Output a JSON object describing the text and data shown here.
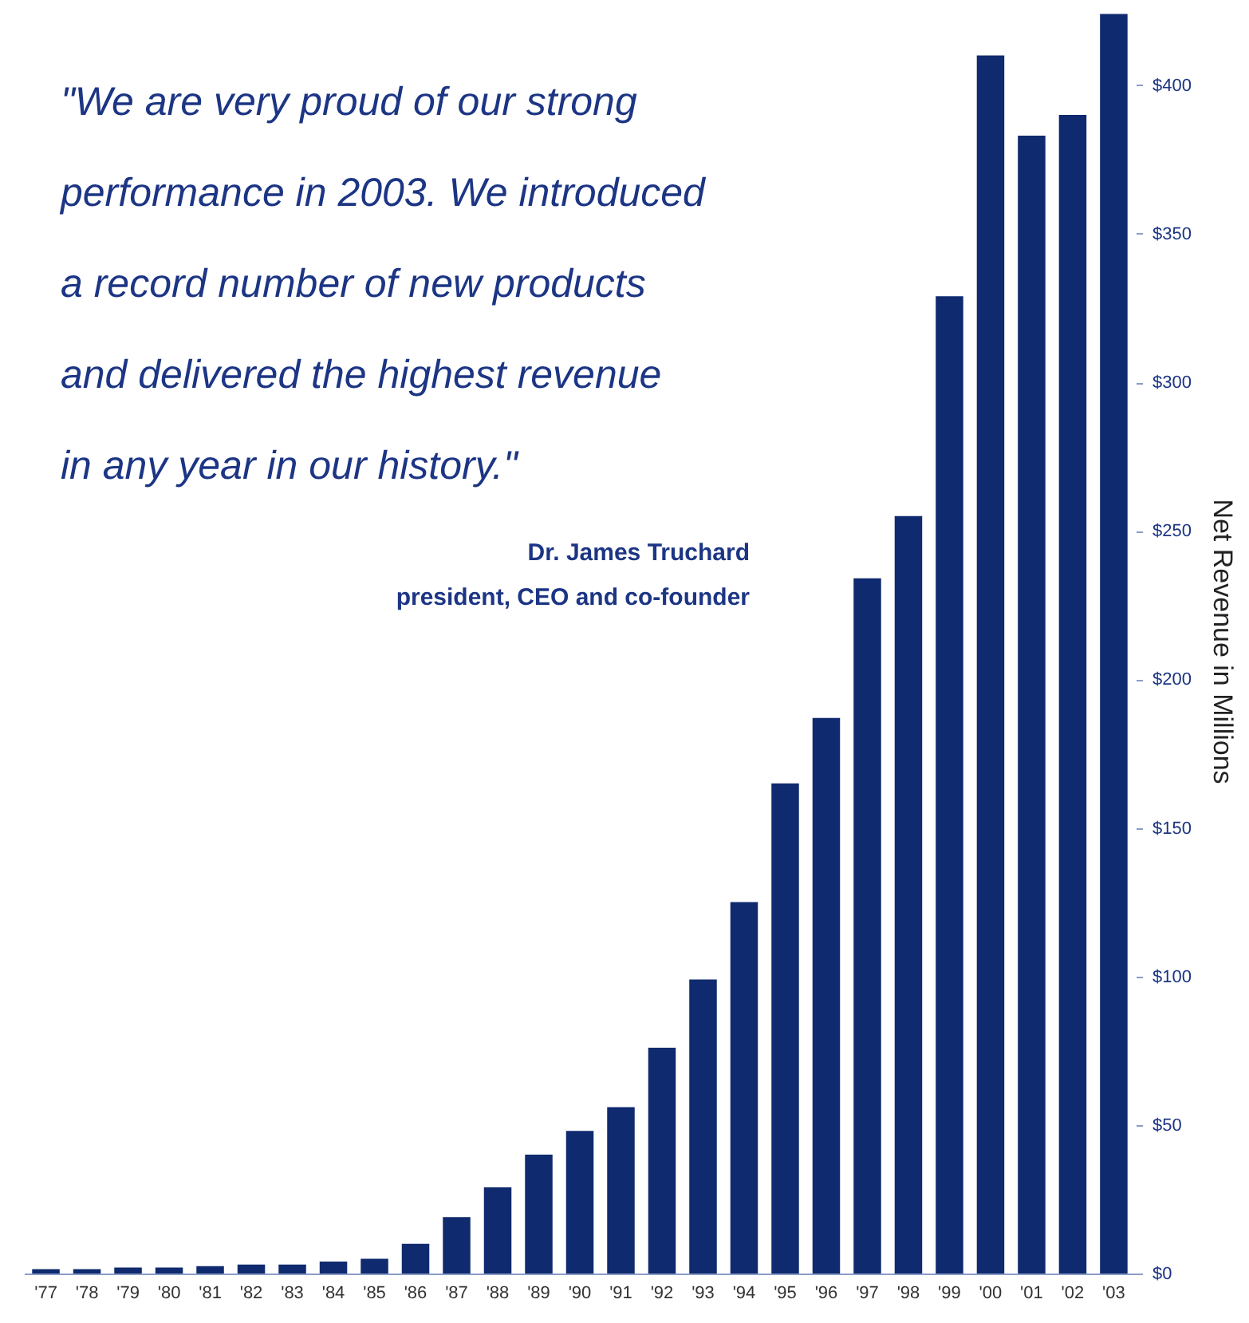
{
  "chart_data": {
    "type": "bar",
    "categories": [
      "'77",
      "'78",
      "'79",
      "'80",
      "'81",
      "'82",
      "'83",
      "'84",
      "'85",
      "'86",
      "'87",
      "'88",
      "'89",
      "'90",
      "'91",
      "'92",
      "'93",
      "'94",
      "'95",
      "'96",
      "'97",
      "'98",
      "'99",
      "'00",
      "'01",
      "'02",
      "'03"
    ],
    "values": [
      1.5,
      1.5,
      2,
      2,
      2.5,
      3,
      3,
      4,
      5,
      10,
      19,
      29,
      40,
      48,
      56,
      76,
      99,
      125,
      165,
      187,
      234,
      255,
      329,
      410,
      383,
      390,
      424
    ],
    "color": "#0f2a6e",
    "ylabel": "Net Revenue in Millions",
    "ylim": [
      0,
      426
    ],
    "yticks": [
      {
        "value": 0,
        "label": "$0"
      },
      {
        "value": 50,
        "label": "$50"
      },
      {
        "value": 100,
        "label": "$100"
      },
      {
        "value": 150,
        "label": "$150"
      },
      {
        "value": 200,
        "label": "$200"
      },
      {
        "value": 250,
        "label": "$250"
      },
      {
        "value": 300,
        "label": "$300"
      },
      {
        "value": 350,
        "label": "$350"
      },
      {
        "value": 400,
        "label": "$400"
      }
    ],
    "annotations": [
      "\"We are very proud of our strong",
      "performance in 2003. We introduced",
      "a record number of new products",
      "and delivered the highest revenue",
      "in any year in our history.\"",
      "Dr. James Truchard",
      "president, CEO and co-founder"
    ]
  }
}
